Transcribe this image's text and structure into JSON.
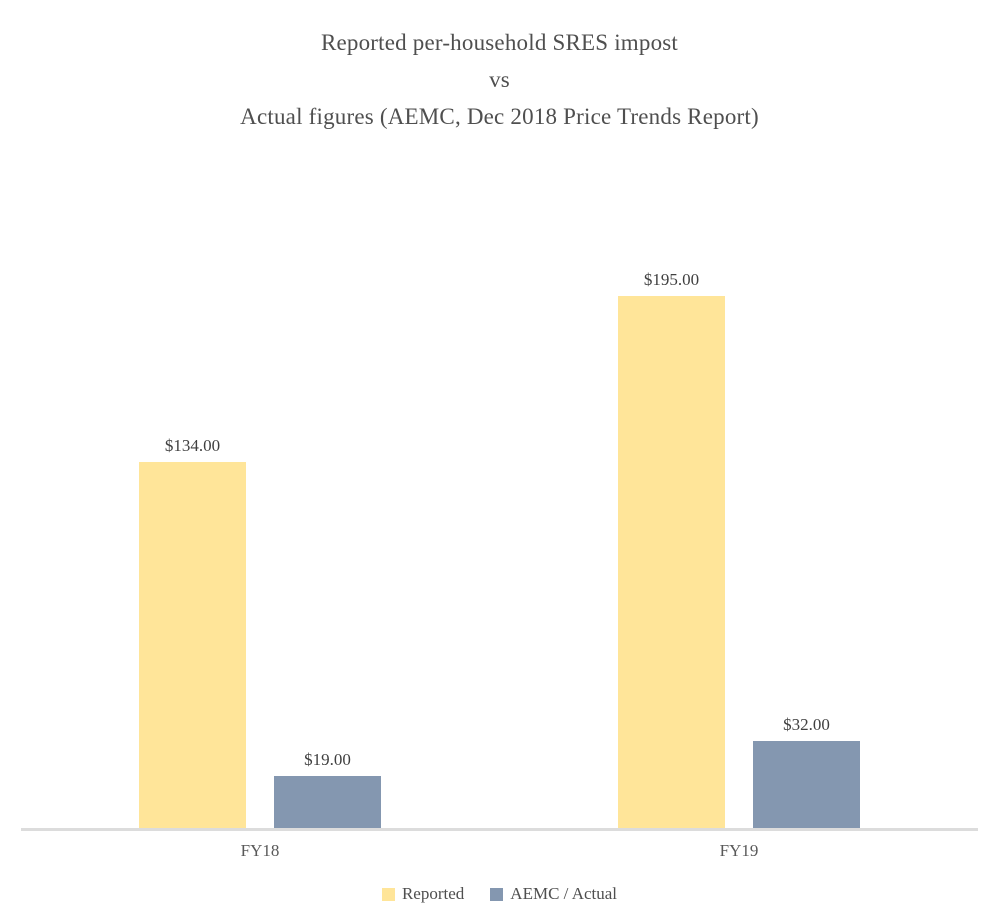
{
  "chart_data": {
    "type": "bar",
    "title_lines": [
      "Reported per-household SRES impost",
      "vs",
      "Actual figures (AEMC, Dec 2018 Price Trends Report)"
    ],
    "categories": [
      "FY18",
      "FY19"
    ],
    "series": [
      {
        "name": "Reported",
        "color": "#FFE599",
        "values": [
          134,
          195
        ],
        "data_labels": [
          "$134.00",
          "$195.00"
        ]
      },
      {
        "name": "AEMC / Actual",
        "color": "#8497B0",
        "values": [
          19,
          32
        ],
        "data_labels": [
          "$19.00",
          "$32.00"
        ]
      }
    ],
    "ylim": [
      0,
      250
    ],
    "gridlines": false,
    "y_axis_visible": false,
    "legend_position": "bottom",
    "axis_line_color": "#DCDCDC",
    "colors": {
      "title_text": "#4F4F4F",
      "data_label_text": "#3F3F3F",
      "category_label_text": "#595959",
      "legend_text": "#4F4F4F",
      "background": "#FFFFFF"
    }
  }
}
